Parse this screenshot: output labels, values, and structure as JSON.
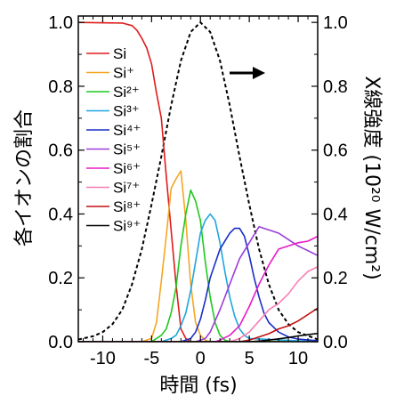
{
  "chart_data": {
    "type": "line",
    "xlabel": "時間 (fs)",
    "ylabel_left": "各イオンの割合",
    "ylabel_right": "X線強度 (10²⁰ W/cm²)",
    "xlim": [
      -12.5,
      12
    ],
    "ylim_left": [
      0,
      1.02
    ],
    "ylim_right": [
      0,
      1.02
    ],
    "x_ticks": [
      -10,
      -5,
      0,
      5,
      10
    ],
    "x_tick_labels": [
      "-10",
      "-5",
      "0",
      "5",
      "10"
    ],
    "y_ticks": [
      0,
      0.2,
      0.4,
      0.6,
      0.8,
      1.0
    ],
    "y_tick_labels": [
      "0.0",
      "0.2",
      "0.4",
      "0.6",
      "0.8",
      "1.0"
    ],
    "arrow": "points-right (X-ray intensity → right axis)",
    "grid": false,
    "legend_position": "top-left",
    "x_ray_intensity": {
      "style": "dashed",
      "color": "#000000",
      "x": [
        -12.5,
        -11,
        -10,
        -9,
        -8,
        -7,
        -6,
        -5,
        -4,
        -3,
        -2,
        -1,
        0,
        1,
        2,
        3,
        4,
        5,
        6,
        7,
        8,
        9,
        10,
        12
      ],
      "values": [
        0.007,
        0.017,
        0.03,
        0.055,
        0.1,
        0.18,
        0.29,
        0.43,
        0.58,
        0.74,
        0.88,
        0.97,
        1.0,
        0.97,
        0.88,
        0.74,
        0.58,
        0.43,
        0.29,
        0.18,
        0.1,
        0.055,
        0.03,
        0.007
      ]
    },
    "series": [
      {
        "name": "Si",
        "color": "#e01b1b",
        "x": [
          -12.5,
          -8,
          -7,
          -6.5,
          -6,
          -5.5,
          -5,
          -4.5,
          -4,
          -3.5,
          -3,
          -2.5,
          -2,
          -1.5,
          -1,
          -0.5,
          0,
          12
        ],
        "values": [
          1.0,
          0.998,
          0.99,
          0.975,
          0.95,
          0.92,
          0.87,
          0.78,
          0.7,
          0.52,
          0.35,
          0.18,
          0.04,
          0.01,
          0.0,
          0.0,
          0.0,
          0.0
        ]
      },
      {
        "name": "Si⁺",
        "color": "#f5a623",
        "x": [
          -12.5,
          -6,
          -5,
          -4.5,
          -4,
          -3.5,
          -3,
          -2.5,
          -2,
          -1.5,
          -1,
          -0.5,
          0,
          0.5,
          1,
          12
        ],
        "values": [
          0.0,
          0.0,
          0.01,
          0.06,
          0.19,
          0.33,
          0.48,
          0.51,
          0.535,
          0.38,
          0.18,
          0.06,
          0.02,
          0.005,
          0.0,
          0.0
        ]
      },
      {
        "name": "Si²⁺",
        "color": "#1ec81e",
        "x": [
          -12.5,
          -5,
          -4,
          -3.5,
          -3,
          -2.5,
          -2,
          -1.5,
          -1,
          -0.5,
          0,
          0.5,
          1,
          1.5,
          2,
          2.5,
          3,
          12
        ],
        "values": [
          0.0,
          0.0,
          0.02,
          0.04,
          0.09,
          0.17,
          0.3,
          0.4,
          0.475,
          0.44,
          0.38,
          0.25,
          0.14,
          0.06,
          0.02,
          0.005,
          0.0,
          0.0
        ]
      },
      {
        "name": "Si³⁺",
        "color": "#1fa6e0",
        "x": [
          -12.5,
          -4,
          -3,
          -2.5,
          -2,
          -1.5,
          -1,
          -0.5,
          0,
          0.5,
          1,
          1.5,
          2,
          2.5,
          3,
          3.5,
          4,
          4.5,
          5,
          12
        ],
        "values": [
          0.0,
          0.0,
          0.01,
          0.02,
          0.05,
          0.09,
          0.16,
          0.25,
          0.34,
          0.38,
          0.4,
          0.38,
          0.31,
          0.22,
          0.14,
          0.08,
          0.04,
          0.02,
          0.01,
          0.0
        ]
      },
      {
        "name": "Si⁴⁺",
        "color": "#1a2ec8",
        "x": [
          -12.5,
          -2,
          -1,
          -0.5,
          0,
          0.5,
          1,
          2,
          3,
          3.5,
          4,
          4.5,
          5,
          5.5,
          6,
          6.5,
          7,
          8,
          9,
          10,
          12
        ],
        "values": [
          0.0,
          0.0,
          0.01,
          0.03,
          0.07,
          0.13,
          0.2,
          0.29,
          0.34,
          0.355,
          0.355,
          0.33,
          0.27,
          0.2,
          0.14,
          0.09,
          0.06,
          0.03,
          0.015,
          0.008,
          0.003
        ]
      },
      {
        "name": "Si⁵⁺",
        "color": "#9b3dd6",
        "x": [
          -12.5,
          -0.5,
          0.5,
          1,
          2,
          3,
          4,
          5,
          6,
          7,
          8,
          9,
          10,
          11,
          12
        ],
        "values": [
          0.0,
          0.0,
          0.01,
          0.03,
          0.1,
          0.18,
          0.26,
          0.31,
          0.36,
          0.35,
          0.34,
          0.32,
          0.3,
          0.285,
          0.27
        ]
      },
      {
        "name": "Si⁶⁺",
        "color": "#e61cc8",
        "x": [
          -12.5,
          1.5,
          2,
          3,
          4,
          5,
          6,
          7,
          8,
          9,
          10,
          11,
          12
        ],
        "values": [
          0.0,
          0.0,
          0.005,
          0.02,
          0.05,
          0.11,
          0.18,
          0.24,
          0.29,
          0.3,
          0.31,
          0.315,
          0.33
        ]
      },
      {
        "name": "Si⁷⁺",
        "color": "#f77fb4",
        "x": [
          -12.5,
          3,
          4,
          5,
          6,
          7,
          8,
          9,
          10,
          11,
          12
        ],
        "values": [
          0.0,
          0.0,
          0.01,
          0.03,
          0.065,
          0.1,
          0.12,
          0.15,
          0.19,
          0.22,
          0.235
        ]
      },
      {
        "name": "Si⁸⁺",
        "color": "#c01010",
        "x": [
          -12.5,
          4,
          5,
          6,
          7,
          8,
          9,
          10,
          11,
          12
        ],
        "values": [
          0.0,
          0.0,
          0.005,
          0.015,
          0.025,
          0.04,
          0.05,
          0.065,
          0.085,
          0.105
        ]
      },
      {
        "name": "Si⁹⁺",
        "color": "#000000",
        "x": [
          -12.5,
          5,
          6,
          7,
          8,
          9,
          10,
          11,
          12
        ],
        "values": [
          0.0,
          0.0,
          0.002,
          0.005,
          0.009,
          0.013,
          0.018,
          0.022,
          0.026
        ]
      }
    ]
  }
}
